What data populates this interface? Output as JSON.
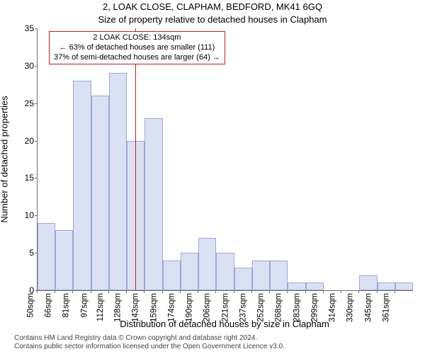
{
  "header": {
    "address": "2, LOAK CLOSE, CLAPHAM, BEDFORD, MK41 6GQ",
    "subtitle": "Size of property relative to detached houses in Clapham"
  },
  "chart": {
    "type": "histogram",
    "ylabel": "Number of detached properties",
    "xlabel": "Distribution of detached houses by size in Clapham",
    "ylim": [
      0,
      35
    ],
    "ytick_step": 5,
    "label_fontsize": 13,
    "tick_fontsize": 11.5,
    "background_color": "#ffffff",
    "axis_color": "#707070",
    "bar_fill": "#dbe1f3",
    "bar_border": "#9aa8d4",
    "bar_width": 1.0,
    "x_ticks": [
      "50sqm",
      "66sqm",
      "81sqm",
      "97sqm",
      "112sqm",
      "128sqm",
      "143sqm",
      "159sqm",
      "174sqm",
      "190sqm",
      "206sqm",
      "221sqm",
      "237sqm",
      "252sqm",
      "268sqm",
      "283sqm",
      "299sqm",
      "314sqm",
      "330sqm",
      "345sqm",
      "361sqm"
    ],
    "values": [
      9,
      8,
      28,
      26,
      29,
      20,
      23,
      4,
      5,
      7,
      5,
      3,
      4,
      4,
      1,
      1,
      0,
      0,
      2,
      1,
      1
    ],
    "marker": {
      "color": "#c02020",
      "position_index": 5.45,
      "box": {
        "line1": "2 LOAK CLOSE: 134sqm",
        "line2": "← 63% of detached houses are smaller (111)",
        "line3": "37% of semi-detached houses are larger (64) →"
      }
    }
  },
  "license": {
    "line1": "Contains HM Land Registry data © Crown copyright and database right 2024.",
    "line2": "Contains public sector information licensed under the Open Government Licence v3.0."
  }
}
